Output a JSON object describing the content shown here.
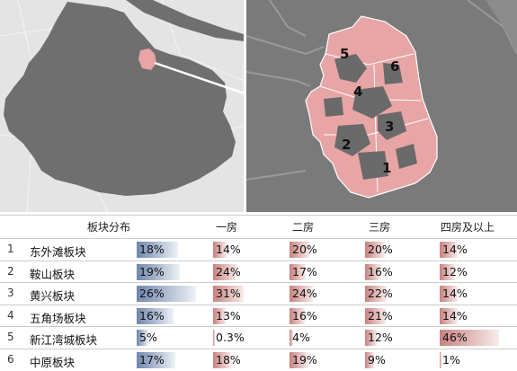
{
  "map": {
    "labels": [
      "1",
      "2",
      "3",
      "4",
      "5",
      "6"
    ],
    "colors": {
      "land": "#6f6f6f",
      "background": "#e6e6e6",
      "highlight": "#e8a5a5",
      "highlight_stroke": "#ffffff"
    }
  },
  "table": {
    "headers": {
      "area": "板块分布",
      "one": "一房",
      "two": "二房",
      "three": "三房",
      "four": "四房及以上"
    },
    "rows": [
      {
        "num": "1",
        "name": "东外滩板块",
        "dist": "18%",
        "one": "14%",
        "two": "20%",
        "three": "20%",
        "four": "14%",
        "dist_v": 18,
        "one_v": 14,
        "two_v": 20,
        "three_v": 20,
        "four_v": 14
      },
      {
        "num": "2",
        "name": "鞍山板块",
        "dist": "19%",
        "one": "24%",
        "two": "17%",
        "three": "16%",
        "four": "12%",
        "dist_v": 19,
        "one_v": 24,
        "two_v": 17,
        "three_v": 16,
        "four_v": 12
      },
      {
        "num": "3",
        "name": "黄兴板块",
        "dist": "26%",
        "one": "31%",
        "two": "24%",
        "three": "22%",
        "four": "14%",
        "dist_v": 26,
        "one_v": 31,
        "two_v": 24,
        "three_v": 22,
        "four_v": 14
      },
      {
        "num": "4",
        "name": "五角场板块",
        "dist": "16%",
        "one": "13%",
        "two": "16%",
        "three": "21%",
        "four": "14%",
        "dist_v": 16,
        "one_v": 13,
        "two_v": 16,
        "three_v": 21,
        "four_v": 14
      },
      {
        "num": "5",
        "name": "新江湾城板块",
        "dist": "5%",
        "one": "0.3%",
        "two": "4%",
        "three": "12%",
        "four": "46%",
        "dist_v": 5,
        "one_v": 0.3,
        "two_v": 4,
        "three_v": 12,
        "four_v": 46
      },
      {
        "num": "6",
        "name": "中原板块",
        "dist": "17%",
        "one": "18%",
        "two": "19%",
        "three": "9%",
        "four": "1%",
        "dist_v": 17,
        "one_v": 18,
        "two_v": 19,
        "three_v": 9,
        "four_v": 1
      }
    ]
  }
}
